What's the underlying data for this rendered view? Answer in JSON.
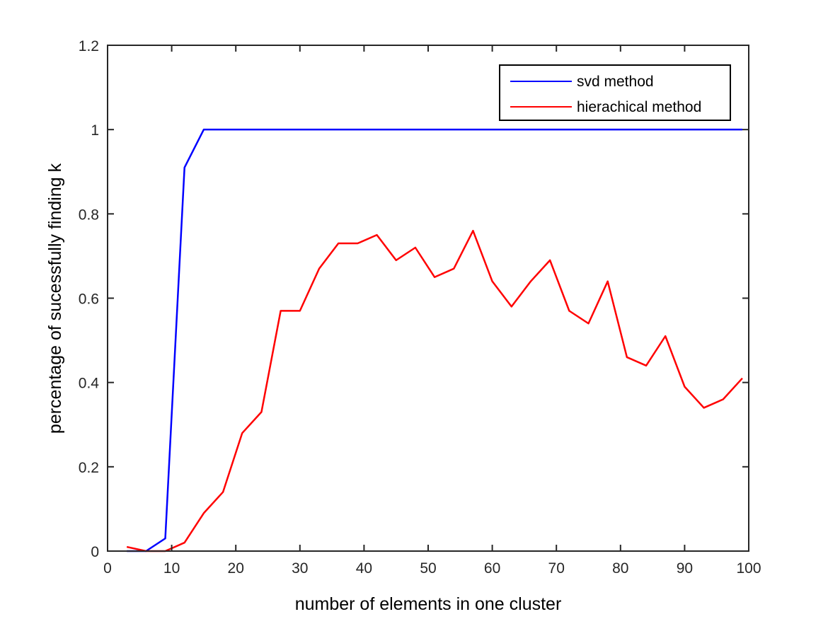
{
  "chart_data": {
    "type": "line",
    "title": "",
    "xlabel": "number of elements in one cluster",
    "ylabel": "percentage of sucessfully finding k",
    "xlim": [
      0,
      100
    ],
    "ylim": [
      0,
      1.2
    ],
    "xticks": [
      0,
      10,
      20,
      30,
      40,
      50,
      60,
      70,
      80,
      90,
      100
    ],
    "yticks": [
      0,
      0.2,
      0.4,
      0.6,
      0.8,
      1,
      1.2
    ],
    "xtick_labels": [
      "0",
      "10",
      "20",
      "30",
      "40",
      "50",
      "60",
      "70",
      "80",
      "90",
      "100"
    ],
    "ytick_labels": [
      "0",
      "0.2",
      "0.4",
      "0.6",
      "0.8",
      "1",
      "1.2"
    ],
    "grid": false,
    "legend_position": "top-right",
    "x": [
      3,
      6,
      9,
      12,
      15,
      18,
      21,
      24,
      27,
      30,
      33,
      36,
      39,
      42,
      45,
      48,
      51,
      54,
      57,
      60,
      63,
      66,
      69,
      72,
      75,
      78,
      81,
      84,
      87,
      90,
      93,
      96,
      99
    ],
    "series": [
      {
        "name": "svd method",
        "color": "#0000ff",
        "values": [
          0,
          0,
          0.03,
          0.91,
          1,
          1,
          1,
          1,
          1,
          1,
          1,
          1,
          1,
          1,
          1,
          1,
          1,
          1,
          1,
          1,
          1,
          1,
          1,
          1,
          1,
          1,
          1,
          1,
          1,
          1,
          1,
          1,
          1
        ]
      },
      {
        "name": "hierachical method",
        "color": "#ff0000",
        "values": [
          0.01,
          0,
          0,
          0.02,
          0.09,
          0.14,
          0.28,
          0.33,
          0.57,
          0.57,
          0.67,
          0.73,
          0.73,
          0.75,
          0.69,
          0.72,
          0.65,
          0.67,
          0.76,
          0.64,
          0.58,
          0.64,
          0.69,
          0.57,
          0.54,
          0.64,
          0.46,
          0.44,
          0.51,
          0.39,
          0.34,
          0.36,
          0.41
        ]
      }
    ]
  }
}
